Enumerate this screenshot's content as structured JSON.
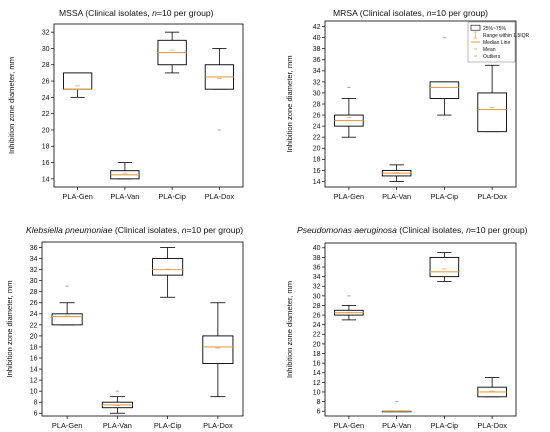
{
  "colors": {
    "box": "#000000",
    "median": "#e3a04f",
    "mean": "#e3a04f",
    "outlier": "#b5b5b5",
    "background": "#ffffff"
  },
  "legend": {
    "items": [
      {
        "key": "box",
        "label": "25%~75%"
      },
      {
        "key": "range",
        "label": "Range within 1.5IQR"
      },
      {
        "key": "median",
        "label": "Median Line"
      },
      {
        "key": "mean",
        "label": "Mean"
      },
      {
        "key": "outlier",
        "label": "Outliers"
      }
    ]
  },
  "chart_data": [
    {
      "type": "box",
      "title_parts": [
        {
          "text": "MSSA",
          "italic": false
        },
        {
          "text": " (Clinical isolates, ",
          "italic": false
        },
        {
          "text": "n",
          "italic": true
        },
        {
          "text": "=10 per group)",
          "italic": false
        }
      ],
      "ylabel": "Inhibition zone diameter, mm",
      "ylim": [
        13,
        33
      ],
      "yticks": [
        14,
        16,
        18,
        20,
        22,
        24,
        26,
        28,
        30,
        32
      ],
      "categories": [
        "PLA-Gen",
        "PLA-Van",
        "PLA-Cip",
        "PLA-Dox"
      ],
      "boxes": [
        {
          "q1": 25,
          "median": 25,
          "q3": 27,
          "whisker_low": 24,
          "whisker_high": 27,
          "mean": 25.4,
          "outliers": []
        },
        {
          "q1": 14,
          "median": 14.5,
          "q3": 15,
          "whisker_low": 14,
          "whisker_high": 16,
          "mean": 14.7,
          "outliers": []
        },
        {
          "q1": 28,
          "median": 29.5,
          "q3": 31,
          "whisker_low": 27,
          "whisker_high": 32,
          "mean": 29.8,
          "outliers": []
        },
        {
          "q1": 25,
          "median": 26.5,
          "q3": 28,
          "whisker_low": 25,
          "whisker_high": 30,
          "mean": 26.3,
          "outliers": [
            20
          ]
        }
      ]
    },
    {
      "type": "box",
      "title_parts": [
        {
          "text": "MRSA",
          "italic": false
        },
        {
          "text": " (Clinical isolates, ",
          "italic": false
        },
        {
          "text": "n",
          "italic": true
        },
        {
          "text": "=10 per group)",
          "italic": false
        }
      ],
      "ylabel": "Inhibition zone diameter, mm",
      "ylim": [
        13,
        43
      ],
      "yticks": [
        14,
        16,
        18,
        20,
        22,
        24,
        26,
        28,
        30,
        32,
        34,
        36,
        38,
        40,
        42
      ],
      "categories": [
        "PLA-Gen",
        "PLA-Van",
        "PLA-Cip",
        "PLA-Dox"
      ],
      "boxes": [
        {
          "q1": 24,
          "median": 25,
          "q3": 26,
          "whisker_low": 22,
          "whisker_high": 29,
          "mean": 25.6,
          "outliers": [
            31
          ]
        },
        {
          "q1": 15,
          "median": 15.5,
          "q3": 16,
          "whisker_low": 14,
          "whisker_high": 17,
          "mean": 15.6,
          "outliers": []
        },
        {
          "q1": 29,
          "median": 31,
          "q3": 32,
          "whisker_low": 26,
          "whisker_high": 32,
          "mean": 31.0,
          "outliers": [
            40
          ]
        },
        {
          "q1": 23,
          "median": 27,
          "q3": 30,
          "whisker_low": 23,
          "whisker_high": 35,
          "mean": 27.4,
          "outliers": []
        }
      ]
    },
    {
      "type": "box",
      "title_parts": [
        {
          "text": "Klebsiella pneumoniae",
          "italic": true
        },
        {
          "text": " (Clinical isolates, ",
          "italic": false
        },
        {
          "text": "n",
          "italic": true
        },
        {
          "text": "=10 per group)",
          "italic": false
        }
      ],
      "ylabel": "Inhibition zone diameter, mm",
      "ylim": [
        5.5,
        37
      ],
      "yticks": [
        6,
        8,
        10,
        12,
        14,
        16,
        18,
        20,
        22,
        24,
        26,
        28,
        30,
        32,
        34,
        36
      ],
      "categories": [
        "PLA-Gen",
        "PLA-Van",
        "PLA-Cip",
        "PLA-Dox"
      ],
      "boxes": [
        {
          "q1": 22,
          "median": 23.5,
          "q3": 24,
          "whisker_low": 22,
          "whisker_high": 26,
          "mean": 23.6,
          "outliers": [
            29
          ]
        },
        {
          "q1": 7,
          "median": 7.5,
          "q3": 8,
          "whisker_low": 6,
          "whisker_high": 9,
          "mean": 7.4,
          "outliers": [
            10
          ]
        },
        {
          "q1": 31,
          "median": 32,
          "q3": 34,
          "whisker_low": 27,
          "whisker_high": 36,
          "mean": 32.1,
          "outliers": []
        },
        {
          "q1": 15,
          "median": 18,
          "q3": 20,
          "whisker_low": 9,
          "whisker_high": 26,
          "mean": 17.8,
          "outliers": []
        }
      ]
    },
    {
      "type": "box",
      "title_parts": [
        {
          "text": "Pseudomonas aeruginosa",
          "italic": true
        },
        {
          "text": " (Clinical isolates, ",
          "italic": false
        },
        {
          "text": "n",
          "italic": true
        },
        {
          "text": "=10 per group)",
          "italic": false
        }
      ],
      "ylabel": "Inhibition zone diameter, mm",
      "ylim": [
        5,
        41
      ],
      "yticks": [
        6,
        8,
        10,
        12,
        14,
        16,
        18,
        20,
        22,
        24,
        26,
        28,
        30,
        32,
        34,
        36,
        38,
        40
      ],
      "categories": [
        "PLA-Gen",
        "PLA-Van",
        "PLA-Cip",
        "PLA-Dox"
      ],
      "boxes": [
        {
          "q1": 26,
          "median": 26.5,
          "q3": 27,
          "whisker_low": 25,
          "whisker_high": 28,
          "mean": 26.6,
          "outliers": [
            30
          ]
        },
        {
          "q1": 6,
          "median": 6,
          "q3": 6,
          "whisker_low": 6,
          "whisker_high": 6,
          "mean": 6,
          "outliers": [
            8
          ]
        },
        {
          "q1": 34,
          "median": 35,
          "q3": 38,
          "whisker_low": 33,
          "whisker_high": 39,
          "mean": 35.6,
          "outliers": []
        },
        {
          "q1": 9,
          "median": 10,
          "q3": 11,
          "whisker_low": 9,
          "whisker_high": 13,
          "mean": 10.2,
          "outliers": []
        }
      ]
    }
  ]
}
